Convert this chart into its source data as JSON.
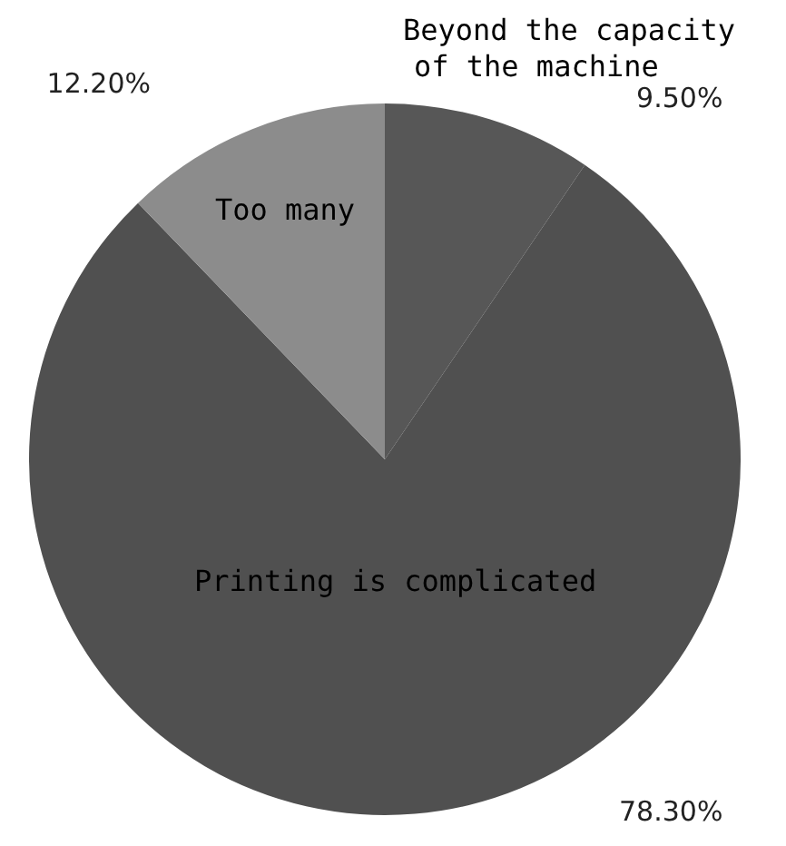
{
  "chart_data": {
    "type": "pie",
    "categories": [
      "Beyond the capacity of the machine",
      "Printing is complicated",
      "Too many"
    ],
    "values": [
      9.5,
      78.3,
      12.2
    ],
    "value_labels": [
      "9.50%",
      "78.30%",
      "12.20%"
    ],
    "colors": [
      "#575757",
      "#505050",
      "#8c8c8c"
    ],
    "legend": false
  }
}
